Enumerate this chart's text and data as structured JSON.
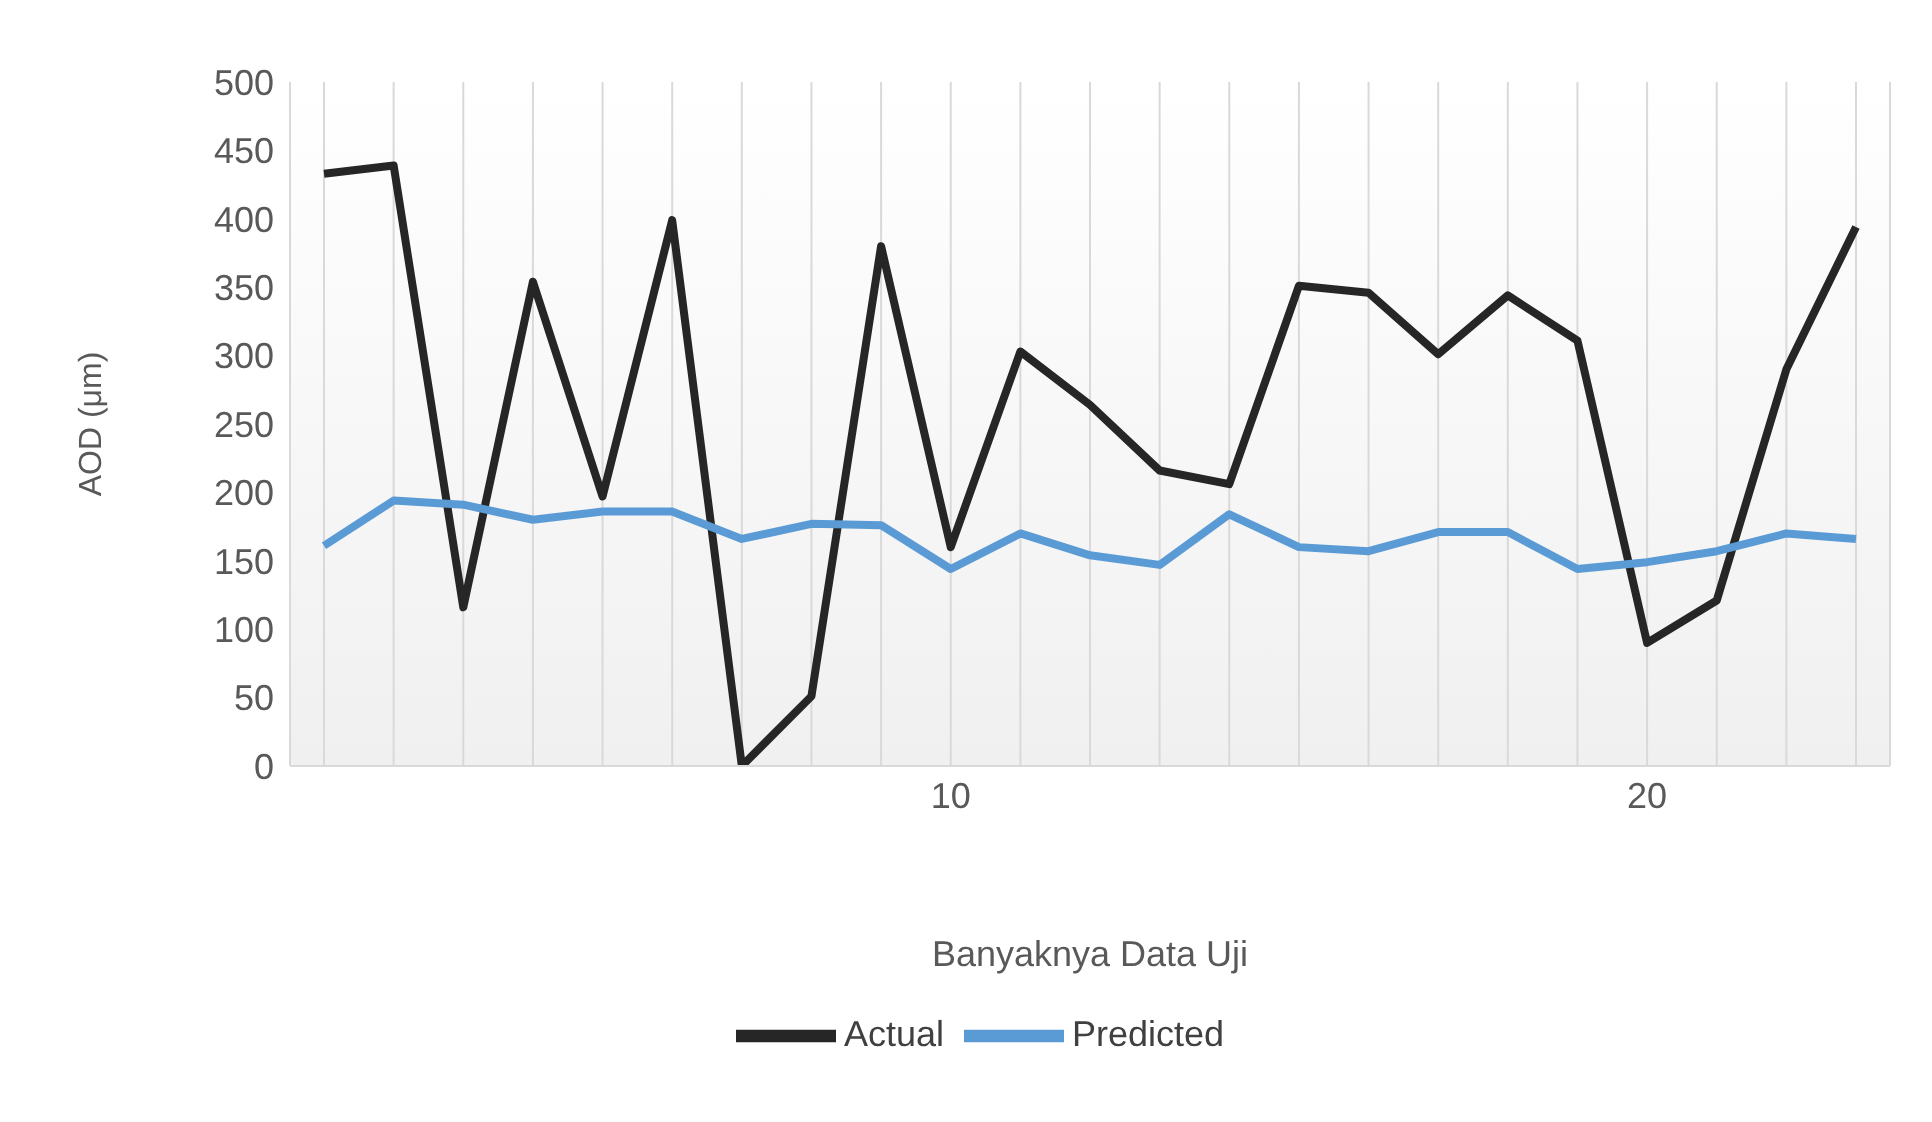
{
  "chart_data": {
    "type": "line",
    "xlabel": "Banyaknya Data Uji",
    "ylabel": "AOD (μm)",
    "categories": [
      null,
      null,
      null,
      null,
      null,
      null,
      null,
      null,
      null,
      "10",
      null,
      null,
      null,
      null,
      null,
      null,
      null,
      null,
      null,
      "20",
      null,
      null,
      null
    ],
    "series": [
      {
        "name": "Actual",
        "color": "#262626",
        "values": [
          433,
          439,
          116,
          354,
          197,
          399,
          0,
          51,
          380,
          160,
          303,
          264,
          216,
          206,
          351,
          346,
          301,
          344,
          311,
          90,
          121,
          290,
          394
        ]
      },
      {
        "name": "Predicted",
        "color": "#5b9bd5",
        "values": [
          161,
          194,
          191,
          180,
          186,
          186,
          166,
          177,
          176,
          144,
          170,
          154,
          147,
          184,
          160,
          157,
          171,
          171,
          144,
          149,
          157,
          170,
          166
        ]
      }
    ],
    "ylim": [
      0,
      500
    ],
    "yticks": [
      0,
      50,
      100,
      150,
      200,
      250,
      300,
      350,
      400,
      450,
      500
    ],
    "grid": "x",
    "legend": "bottom",
    "marker": "none",
    "line_style": "solid"
  }
}
